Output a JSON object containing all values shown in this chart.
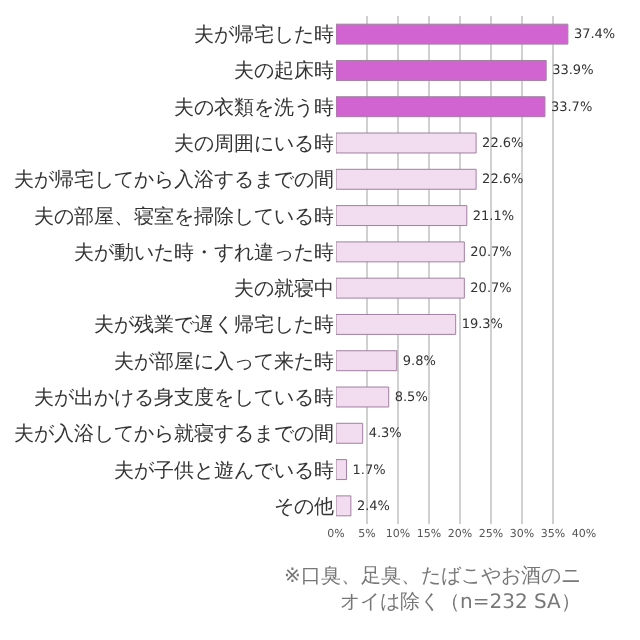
{
  "chart_data": {
    "type": "bar",
    "orientation": "horizontal",
    "categories": [
      "夫が帰宅した時",
      "夫の起床時",
      "夫の衣類を洗う時",
      "夫の周囲にいる時",
      "夫が帰宅してから入浴するまでの間",
      "夫の部屋、寝室を掃除している時",
      "夫が動いた時・すれ違った時",
      "夫の就寝中",
      "夫が残業で遅く帰宅した時",
      "夫が部屋に入って来た時",
      "夫が出かける身支度をしている時",
      "夫が入浴してから就寝するまでの間",
      "夫が子供と遊んでいる時",
      "その他"
    ],
    "values": [
      37.4,
      33.9,
      33.7,
      22.6,
      22.6,
      21.1,
      20.7,
      20.7,
      19.3,
      9.8,
      8.5,
      4.3,
      1.7,
      2.4
    ],
    "value_labels": [
      "37.4%",
      "33.9%",
      "33.7%",
      "22.6%",
      "22.6%",
      "21.1%",
      "20.7%",
      "20.7%",
      "19.3%",
      "9.8%",
      "8.5%",
      "4.3%",
      "1.7%",
      "2.4%"
    ],
    "colors": [
      "#d264d2",
      "#d264d2",
      "#d264d2",
      "#f2dcf0",
      "#f2dcf0",
      "#f2dcf0",
      "#f2dcf0",
      "#f2dcf0",
      "#f2dcf0",
      "#f2dcf0",
      "#f2dcf0",
      "#f2dcf0",
      "#f2dcf0",
      "#f2dcf0"
    ],
    "xlim": [
      0,
      40
    ],
    "xticks": [
      {
        "value": 0,
        "label": "0%"
      },
      {
        "value": 5,
        "label": "5%"
      },
      {
        "value": 10,
        "label": "10%"
      },
      {
        "value": 15,
        "label": "15%"
      },
      {
        "value": 20,
        "label": "20%"
      },
      {
        "value": 25,
        "label": "25%"
      },
      {
        "value": 30,
        "label": "30%"
      },
      {
        "value": 35,
        "label": "35%"
      },
      {
        "value": 40,
        "label": "40%"
      }
    ],
    "grid": "x",
    "annotations": [
      "※口臭、足臭、たばこやお酒のニオイは除く（n=232 SA）"
    ]
  }
}
